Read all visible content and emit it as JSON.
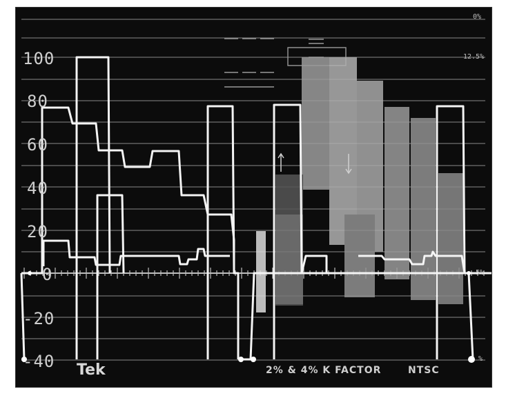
{
  "scale": {
    "ire_labels": [
      "100",
      "80",
      "60",
      "40",
      "20",
      "0",
      "-20",
      "-40"
    ],
    "percent_labels": [
      "0%",
      "12.5%",
      "5%",
      "%"
    ]
  },
  "footer": {
    "brand": "Tek",
    "kfactor": "2% & 4%  K FACTOR",
    "standard": "NTSC"
  },
  "colors": {
    "screen": "#0c0c0c",
    "trace": "#ffffff",
    "graticule": "#8a8a8a"
  }
}
